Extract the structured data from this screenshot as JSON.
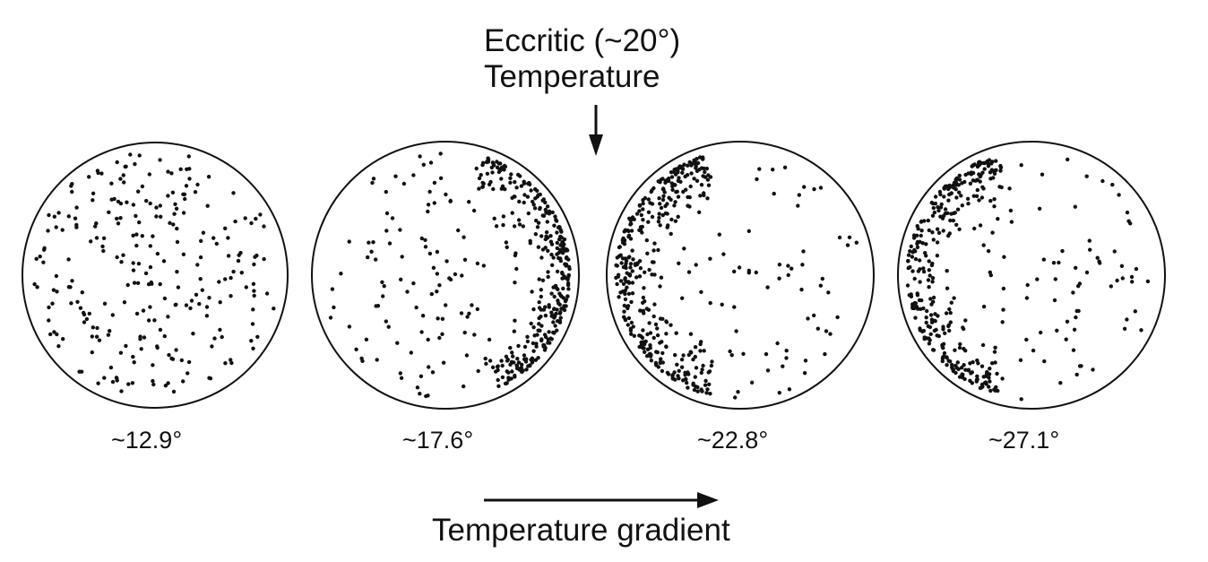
{
  "title": {
    "line1": "Eccritic (~20°)",
    "line2": "Temperature"
  },
  "plates": [
    {
      "label": "~12.9°",
      "cluster": "scattered"
    },
    {
      "label": "~17.6°",
      "cluster": "right-edge"
    },
    {
      "label": "~22.8°",
      "cluster": "left-edge"
    },
    {
      "label": "~27.1°",
      "cluster": "left-edge"
    }
  ],
  "gradient_label": "Temperature gradient",
  "colors": {
    "ink": "#111111",
    "background": "#ffffff"
  }
}
